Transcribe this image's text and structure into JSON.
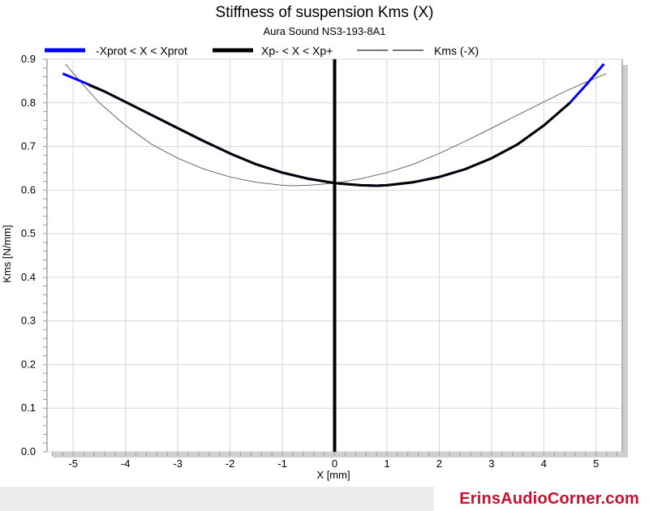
{
  "chart_data": {
    "type": "line",
    "title": "Stiffness of suspension Kms (X)",
    "subtitle": "Aura Sound NS3-193-8A1",
    "xlabel": "X [mm]",
    "ylabel": "Kms [N/mm]",
    "xlim": [
      -5.5,
      5.5
    ],
    "ylim": [
      0,
      0.9
    ],
    "xticks": [
      -5,
      -4,
      -3,
      -2,
      -1,
      0,
      1,
      2,
      3,
      4,
      5
    ],
    "yticks": [
      0,
      0.1,
      0.2,
      0.3,
      0.4,
      0.5,
      0.6,
      0.7,
      0.8,
      0.9
    ],
    "xtick_labels": [
      "-5",
      "-4",
      "-3",
      "-2",
      "-1",
      "0",
      "1",
      "2",
      "3",
      "4",
      "5"
    ],
    "ytick_labels": [
      "0.0",
      "0.1",
      "0.2",
      "0.3",
      "0.4",
      "0.5",
      "0.6",
      "0.7",
      "0.8",
      "0.9"
    ],
    "grid": true,
    "legend_position": "top",
    "vertical_marker_x": 0,
    "series": [
      {
        "name": "-Xprot < X < Xprot",
        "color": "#0000ff",
        "style": "thick",
        "x": [
          -5.2,
          -5.0,
          -4.8,
          -4.6,
          -4.4,
          -4.6
        ],
        "y": [
          0.867,
          0.857,
          0.847,
          0.836,
          0.826,
          0.836
        ],
        "x_full": [
          -5.2,
          -4.8,
          -4.4,
          -4.0,
          -3.5,
          -3.0,
          -2.5,
          -2.0,
          -1.5,
          -1.0,
          -0.5,
          0.0,
          0.5,
          0.8,
          1.0,
          1.5,
          2.0,
          2.5,
          3.0,
          3.5,
          4.0,
          4.5,
          4.8,
          5.15
        ],
        "y_full": [
          0.867,
          0.847,
          0.826,
          0.802,
          0.772,
          0.742,
          0.712,
          0.684,
          0.659,
          0.64,
          0.626,
          0.616,
          0.611,
          0.61,
          0.611,
          0.618,
          0.63,
          0.648,
          0.673,
          0.705,
          0.748,
          0.8,
          0.84,
          0.889
        ]
      },
      {
        "name": "Xp- < X < Xp+",
        "color": "#000000",
        "style": "thick",
        "x": [
          -4.7,
          -4.4,
          -4.0,
          -3.5,
          -3.0,
          -2.5,
          -2.0,
          -1.5,
          -1.0,
          -0.5,
          0.0,
          0.5,
          0.8,
          1.0,
          1.5,
          2.0,
          2.5,
          3.0,
          3.5,
          4.0,
          4.5
        ],
        "y": [
          0.841,
          0.826,
          0.802,
          0.772,
          0.742,
          0.712,
          0.684,
          0.659,
          0.64,
          0.626,
          0.616,
          0.611,
          0.61,
          0.611,
          0.618,
          0.63,
          0.648,
          0.673,
          0.705,
          0.748,
          0.8
        ]
      },
      {
        "name": "Kms (-X)",
        "color": "#666666",
        "style": "thin",
        "x": [
          -5.15,
          -4.8,
          -4.5,
          -4.0,
          -3.5,
          -3.0,
          -2.5,
          -2.0,
          -1.5,
          -1.0,
          -0.8,
          -0.5,
          0.0,
          0.5,
          1.0,
          1.5,
          2.0,
          2.5,
          3.0,
          3.5,
          4.0,
          4.4,
          4.8,
          5.2
        ],
        "y": [
          0.889,
          0.84,
          0.8,
          0.748,
          0.705,
          0.673,
          0.648,
          0.63,
          0.618,
          0.611,
          0.61,
          0.611,
          0.616,
          0.626,
          0.64,
          0.659,
          0.684,
          0.712,
          0.742,
          0.772,
          0.802,
          0.826,
          0.847,
          0.867
        ]
      }
    ]
  },
  "watermark": "ErinsAudioCorner.com"
}
